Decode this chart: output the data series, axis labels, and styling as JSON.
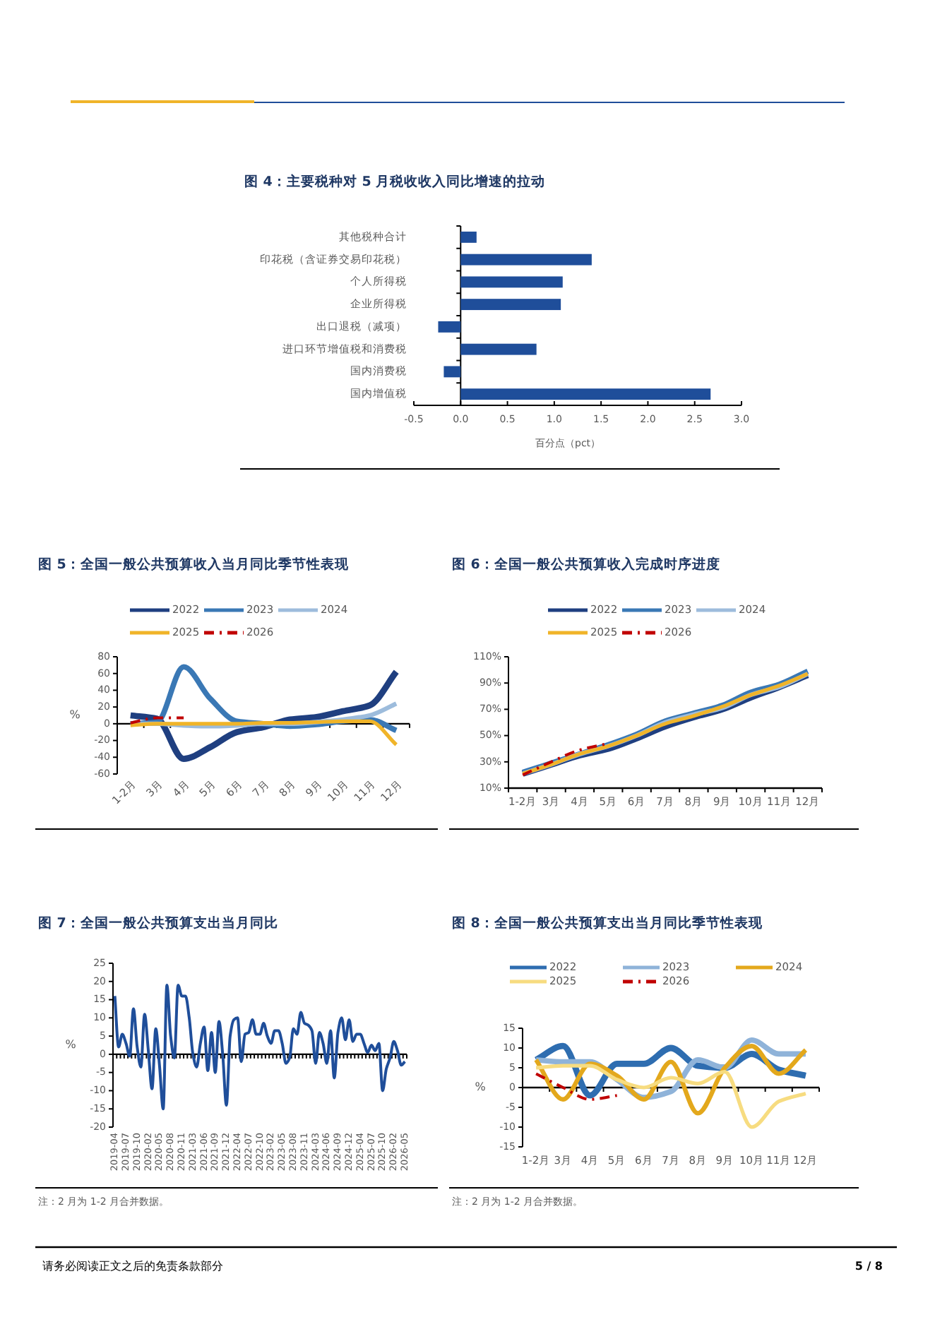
{
  "chart_data": [
    {
      "type": "bar",
      "orientation": "horizontal",
      "title": "图 4：主要税种对 5 月税收收入同比增速的拉动",
      "xlabel": "百分点（pct）",
      "categories": [
        "其他税种合计",
        "印花税（含证券交易印花税）",
        "个人所得税",
        "企业所得税",
        "出口退税（减项）",
        "进口环节增值税和消费税",
        "国内消费税",
        "国内增值税"
      ],
      "values": [
        0.17,
        1.4,
        1.09,
        1.07,
        -0.24,
        0.81,
        -0.18,
        2.67
      ],
      "color": "#1f4e9a",
      "xlim": [
        -0.5,
        3
      ],
      "xticks": [
        -0.5,
        {
          "value": 0,
          "label": "0.0"
        },
        0.5,
        {
          "value": 1,
          "label": "1.0"
        },
        1.5,
        {
          "value": 2,
          "label": "2.0"
        },
        2.5,
        {
          "value": 3,
          "label": "3.0"
        }
      ]
    },
    {
      "type": "line",
      "title": "图 5：全国一般公共预算收入当月同比季节性表现",
      "ylabel": "%",
      "legend": "top",
      "categories": [
        "1-2月",
        "3月",
        "4月",
        "5月",
        "6月",
        "7月",
        "8月",
        "9月",
        "10月",
        "11月",
        "12月"
      ],
      "ylim": [
        -60,
        80
      ],
      "yticks": [
        -60,
        -40,
        -20,
        0,
        20,
        40,
        60,
        80
      ],
      "series": [
        {
          "name": "2022",
          "color": "#1f3f80",
          "values": [
            10,
            6,
            -42,
            -28,
            -10,
            -4,
            5,
            8,
            15,
            22,
            62
          ]
        },
        {
          "name": "2023",
          "color": "#3a78b5",
          "values": [
            0,
            2,
            68,
            30,
            3,
            0,
            -3,
            -1,
            3,
            5,
            -8
          ]
        },
        {
          "name": "2024",
          "color": "#9dbcdc",
          "values": [
            0,
            0,
            -2,
            -3,
            -2,
            0,
            0,
            2,
            5,
            10,
            24
          ]
        },
        {
          "name": "2025",
          "color": "#f0b429",
          "values": [
            -2,
            0,
            0,
            0,
            0,
            1,
            1,
            2,
            3,
            3,
            -25
          ]
        },
        {
          "name": "2026",
          "color": "#c00000",
          "line_style": "dashed",
          "values": [
            1,
            7,
            7,
            null,
            null,
            null,
            null,
            null,
            null,
            null,
            null
          ]
        }
      ]
    },
    {
      "type": "line",
      "title": "图 6：全国一般公共预算收入完成时序进度",
      "legend": "top",
      "categories": [
        "1-2月",
        "3月",
        "4月",
        "5月",
        "6月",
        "7月",
        "8月",
        "9月",
        "10月",
        "11月",
        "12月"
      ],
      "ylim": [
        10,
        110
      ],
      "yticks": [
        {
          "value": 10,
          "label": "10%"
        },
        {
          "value": 30,
          "label": "30%"
        },
        {
          "value": 50,
          "label": "50%"
        },
        {
          "value": 70,
          "label": "70%"
        },
        {
          "value": 90,
          "label": "90%"
        },
        {
          "value": 110,
          "label": "110%"
        }
      ],
      "series": [
        {
          "name": "2022",
          "color": "#1f3f80",
          "values": [
            21,
            28,
            35,
            40,
            48,
            57,
            64,
            70,
            79,
            87,
            96
          ]
        },
        {
          "name": "2023",
          "color": "#3a78b5",
          "values": [
            22,
            29,
            36,
            43,
            51,
            61,
            67,
            73,
            83,
            89,
            99
          ]
        },
        {
          "name": "2024",
          "color": "#9dbcdc",
          "values": [
            21,
            28,
            36,
            42,
            50,
            60,
            66,
            71,
            81,
            87,
            97
          ]
        },
        {
          "name": "2025",
          "color": "#f0b429",
          "values": [
            21,
            28,
            36,
            42,
            50,
            59,
            65,
            72,
            81,
            88,
            97
          ]
        },
        {
          "name": "2026",
          "color": "#c00000",
          "line_style": "dashed",
          "values": [
            20,
            30,
            39,
            44,
            null,
            null,
            null,
            null,
            null,
            null,
            null
          ]
        }
      ]
    },
    {
      "type": "line",
      "title": "图 7：全国一般公共预算支出当月同比",
      "ylabel": "%",
      "annotations": [
        "注：2 月为 1-2 月合并数据。"
      ],
      "color": "#1f4e9a",
      "ylim": [
        -20,
        25
      ],
      "yticks": [
        -20,
        -15,
        -10,
        -5,
        0,
        5,
        10,
        15,
        20,
        25
      ],
      "categories": [
        "2019-04",
        null,
        null,
        "2019-07",
        null,
        null,
        "2019-10",
        null,
        null,
        "2020-02",
        null,
        null,
        "2020-05",
        null,
        null,
        "2020-08",
        null,
        null,
        "2020-11",
        null,
        null,
        "2021-03",
        null,
        null,
        "2021-06",
        null,
        null,
        "2021-09",
        null,
        null,
        "2021-12",
        null,
        null,
        "2022-04",
        null,
        null,
        "2022-07",
        null,
        null,
        "2022-10",
        null,
        null,
        "2023-02",
        null,
        null,
        "2023-05",
        null,
        null,
        "2023-08",
        null,
        null,
        "2023-11",
        null,
        null,
        "2024-03",
        null,
        null,
        "2024-06",
        null,
        null,
        "2024-09",
        null,
        null,
        "2024-12",
        null,
        null,
        "2025-04",
        null,
        null,
        "2025-07",
        null,
        null,
        "2025-10",
        null,
        null,
        "2026-02",
        null,
        null,
        "2026-05"
      ],
      "values": [
        16,
        2,
        5.5,
        3,
        -0.5,
        12.5,
        2,
        -3.5,
        11,
        1,
        -9.5,
        7,
        -3,
        -15,
        19,
        5,
        -1,
        19,
        16,
        16,
        10,
        0,
        -3.5,
        3,
        7.5,
        -4.5,
        6,
        -5,
        9,
        0,
        -14,
        5,
        9.5,
        10,
        -2,
        5.5,
        6,
        9.5,
        5.5,
        5.5,
        8.5,
        5,
        3,
        6.5,
        6.5,
        3,
        -2.5,
        -1,
        7,
        5.5,
        11.5,
        8.5,
        8,
        6.5,
        -2.5,
        6,
        3,
        -2.5,
        6.5,
        -6.5,
        6,
        10,
        4,
        9.5,
        3.5,
        5.5,
        5.5,
        3,
        0.5,
        2.5,
        1,
        3,
        -10,
        -4,
        -1,
        3.5,
        1,
        -3,
        -2
      ]
    },
    {
      "type": "line",
      "title": "图 8：全国一般公共预算支出当月同比季节性表现",
      "ylabel": "%",
      "legend": "top",
      "annotations": [
        "注：2 月为 1-2 月合并数据。"
      ],
      "categories": [
        "1-2月",
        "3月",
        "4月",
        "5月",
        "6月",
        "7月",
        "8月",
        "9月",
        "10月",
        "11月",
        "12月"
      ],
      "ylim": [
        -15,
        15
      ],
      "yticks": [
        -15,
        -10,
        -5,
        0,
        5,
        10,
        15
      ],
      "series": [
        {
          "name": "2022",
          "color": "#2e6db0",
          "values": [
            7,
            10.5,
            -2,
            6,
            6,
            10,
            5.5,
            5,
            8.5,
            4.5,
            3
          ]
        },
        {
          "name": "2023",
          "color": "#8fb3d9",
          "values": [
            7,
            6.5,
            6.5,
            2,
            -2.5,
            -1,
            7,
            5,
            12,
            8.5,
            8.5
          ]
        },
        {
          "name": "2024",
          "color": "#e3a81c",
          "values": [
            7,
            -3,
            6,
            3,
            -3,
            6.5,
            -6.5,
            5,
            10.5,
            3.5,
            9.5
          ]
        },
        {
          "name": "2025",
          "color": "#f7dc80",
          "values": [
            5,
            5.5,
            5.5,
            2,
            0,
            2.5,
            1,
            4,
            -10,
            -3.5,
            -1.5
          ]
        },
        {
          "name": "2026",
          "color": "#c00000",
          "line_style": "dashed",
          "values": [
            3.5,
            0,
            -3,
            -2,
            null,
            null,
            null,
            null,
            null,
            null,
            null
          ]
        }
      ]
    },
    {
      "type": "other",
      "annotations": [
        "请务必阅读正文之后的免责条款部分",
        "5 / 8"
      ]
    }
  ]
}
